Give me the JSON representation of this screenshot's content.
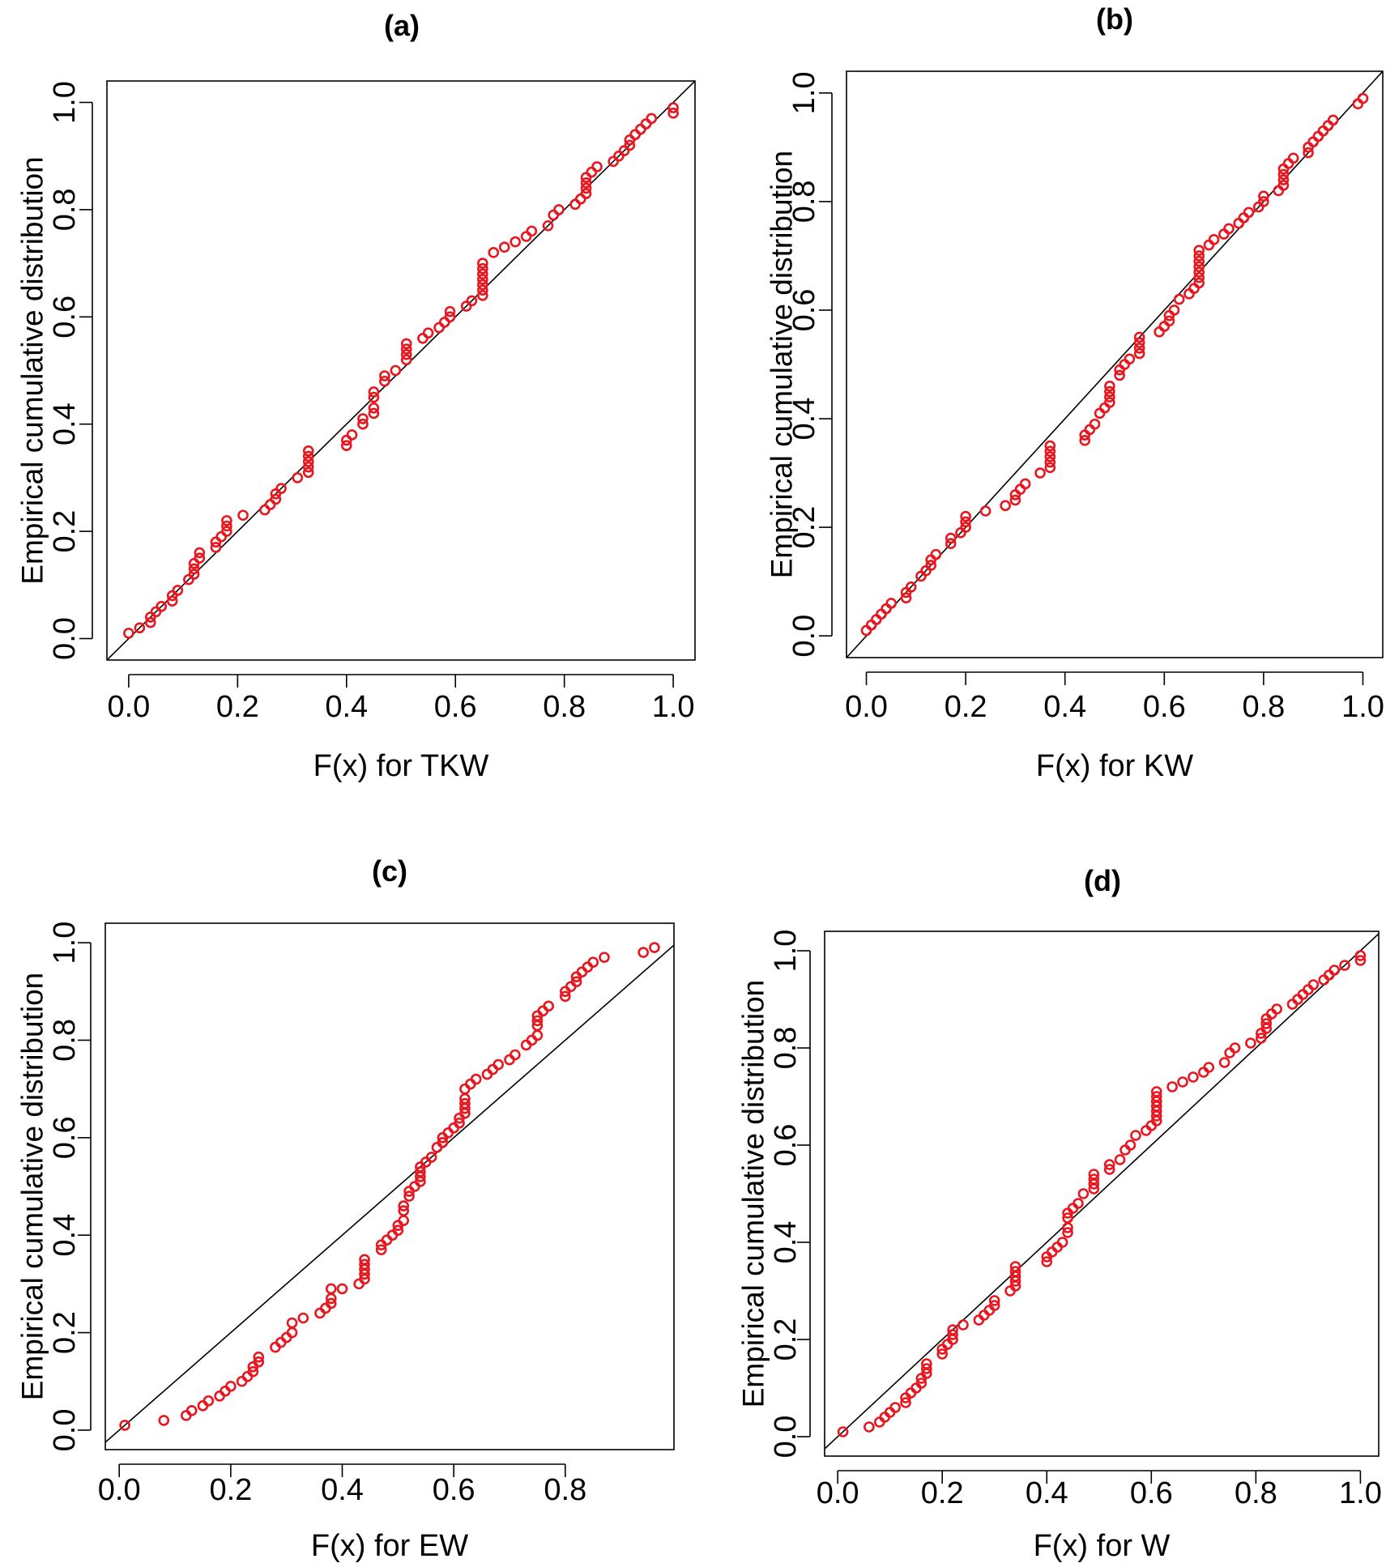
{
  "chart_data": [
    {
      "type": "scatter",
      "title": "(a)",
      "xlabel": "F(x) for TKW",
      "ylabel": "Empirical cumulative distribution",
      "xlim": [
        -0.04,
        1.04
      ],
      "ylim": [
        -0.04,
        1.04
      ],
      "xticks": [
        "0.0",
        "0.2",
        "0.4",
        "0.6",
        "0.8",
        "1.0"
      ],
      "yticks": [
        "0.0",
        "0.2",
        "0.4",
        "0.6",
        "0.8",
        "1.0"
      ],
      "grid": false,
      "marker_color": "#e8161f",
      "reference_line": [
        [
          0,
          0
        ],
        [
          1,
          1
        ]
      ],
      "x": [
        0.0,
        0.02,
        0.04,
        0.04,
        0.05,
        0.06,
        0.08,
        0.08,
        0.09,
        0.11,
        0.12,
        0.12,
        0.12,
        0.13,
        0.13,
        0.16,
        0.16,
        0.17,
        0.18,
        0.18,
        0.18,
        0.21,
        0.25,
        0.26,
        0.27,
        0.27,
        0.28,
        0.31,
        0.33,
        0.33,
        0.33,
        0.33,
        0.33,
        0.4,
        0.4,
        0.41,
        0.43,
        0.43,
        0.45,
        0.45,
        0.45,
        0.45,
        0.47,
        0.47,
        0.49,
        0.51,
        0.51,
        0.51,
        0.51,
        0.54,
        0.55,
        0.57,
        0.58,
        0.59,
        0.59,
        0.62,
        0.63,
        0.65,
        0.65,
        0.65,
        0.65,
        0.65,
        0.65,
        0.65,
        0.67,
        0.69,
        0.71,
        0.73,
        0.74,
        0.77,
        0.78,
        0.79,
        0.82,
        0.83,
        0.84,
        0.84,
        0.84,
        0.84,
        0.85,
        0.86,
        0.89,
        0.9,
        0.91,
        0.92,
        0.92,
        0.93,
        0.94,
        0.95,
        0.96,
        1.0,
        1.0
      ],
      "y": [
        0.01,
        0.02,
        0.03,
        0.04,
        0.05,
        0.06,
        0.07,
        0.08,
        0.09,
        0.11,
        0.12,
        0.13,
        0.14,
        0.15,
        0.16,
        0.17,
        0.18,
        0.19,
        0.2,
        0.21,
        0.22,
        0.23,
        0.24,
        0.25,
        0.26,
        0.27,
        0.28,
        0.3,
        0.31,
        0.32,
        0.33,
        0.34,
        0.35,
        0.36,
        0.37,
        0.38,
        0.4,
        0.41,
        0.42,
        0.43,
        0.45,
        0.46,
        0.48,
        0.49,
        0.5,
        0.52,
        0.53,
        0.54,
        0.55,
        0.56,
        0.57,
        0.58,
        0.59,
        0.6,
        0.61,
        0.62,
        0.63,
        0.64,
        0.65,
        0.66,
        0.67,
        0.68,
        0.69,
        0.7,
        0.72,
        0.73,
        0.74,
        0.75,
        0.76,
        0.77,
        0.79,
        0.8,
        0.81,
        0.82,
        0.83,
        0.84,
        0.85,
        0.86,
        0.87,
        0.88,
        0.89,
        0.9,
        0.91,
        0.92,
        0.93,
        0.94,
        0.95,
        0.96,
        0.97,
        0.98,
        0.99
      ]
    },
    {
      "type": "scatter",
      "title": "(b)",
      "xlabel": "F(x) for KW",
      "ylabel": "Empirical cumulative distribution",
      "xlim": [
        -0.04,
        1.04
      ],
      "ylim": [
        -0.04,
        1.04
      ],
      "xticks": [
        "0.0",
        "0.2",
        "0.4",
        "0.6",
        "0.8",
        "1.0"
      ],
      "yticks": [
        "0.0",
        "0.2",
        "0.4",
        "0.6",
        "0.8",
        "1.0"
      ],
      "grid": false,
      "marker_color": "#e8161f",
      "reference_line": [
        [
          0,
          0
        ],
        [
          1,
          1
        ]
      ],
      "x": [
        0.0,
        0.01,
        0.02,
        0.03,
        0.04,
        0.05,
        0.08,
        0.08,
        0.09,
        0.11,
        0.12,
        0.13,
        0.13,
        0.14,
        0.17,
        0.17,
        0.19,
        0.2,
        0.2,
        0.2,
        0.24,
        0.28,
        0.3,
        0.3,
        0.31,
        0.32,
        0.35,
        0.37,
        0.37,
        0.37,
        0.37,
        0.37,
        0.44,
        0.44,
        0.45,
        0.46,
        0.47,
        0.48,
        0.49,
        0.49,
        0.49,
        0.49,
        0.51,
        0.51,
        0.52,
        0.53,
        0.55,
        0.55,
        0.55,
        0.55,
        0.59,
        0.6,
        0.61,
        0.61,
        0.62,
        0.63,
        0.65,
        0.66,
        0.67,
        0.67,
        0.67,
        0.67,
        0.67,
        0.67,
        0.67,
        0.69,
        0.7,
        0.72,
        0.73,
        0.75,
        0.76,
        0.77,
        0.79,
        0.8,
        0.8,
        0.83,
        0.84,
        0.84,
        0.84,
        0.84,
        0.85,
        0.86,
        0.89,
        0.89,
        0.9,
        0.91,
        0.92,
        0.93,
        0.94,
        0.99,
        1.0
      ],
      "y": [
        0.01,
        0.02,
        0.03,
        0.04,
        0.05,
        0.06,
        0.07,
        0.08,
        0.09,
        0.11,
        0.12,
        0.13,
        0.14,
        0.15,
        0.17,
        0.18,
        0.19,
        0.2,
        0.21,
        0.22,
        0.23,
        0.24,
        0.25,
        0.26,
        0.27,
        0.28,
        0.3,
        0.31,
        0.32,
        0.33,
        0.34,
        0.35,
        0.36,
        0.37,
        0.38,
        0.39,
        0.41,
        0.42,
        0.43,
        0.44,
        0.45,
        0.46,
        0.48,
        0.49,
        0.5,
        0.51,
        0.52,
        0.53,
        0.54,
        0.55,
        0.56,
        0.57,
        0.58,
        0.59,
        0.6,
        0.62,
        0.63,
        0.64,
        0.65,
        0.66,
        0.67,
        0.68,
        0.69,
        0.7,
        0.71,
        0.72,
        0.73,
        0.74,
        0.75,
        0.76,
        0.77,
        0.78,
        0.79,
        0.8,
        0.81,
        0.82,
        0.83,
        0.84,
        0.85,
        0.86,
        0.87,
        0.88,
        0.89,
        0.9,
        0.91,
        0.92,
        0.93,
        0.94,
        0.95,
        0.98,
        0.99
      ]
    },
    {
      "type": "scatter",
      "title": "(c)",
      "xlabel": "F(x) for EW",
      "ylabel": "Empirical cumulative distribution",
      "xlim": [
        -0.025,
        0.995
      ],
      "ylim": [
        -0.04,
        1.04
      ],
      "xticks": [
        "0.0",
        "0.2",
        "0.4",
        "0.6",
        "0.8"
      ],
      "yticks": [
        "0.0",
        "0.2",
        "0.4",
        "0.6",
        "0.8",
        "1.0"
      ],
      "grid": false,
      "marker_color": "#e8161f",
      "reference_line": [
        [
          0,
          0
        ],
        [
          1,
          1
        ]
      ],
      "x": [
        0.01,
        0.08,
        0.12,
        0.13,
        0.15,
        0.16,
        0.18,
        0.19,
        0.2,
        0.22,
        0.23,
        0.24,
        0.24,
        0.25,
        0.25,
        0.28,
        0.29,
        0.3,
        0.31,
        0.31,
        0.33,
        0.36,
        0.37,
        0.38,
        0.38,
        0.38,
        0.4,
        0.43,
        0.44,
        0.44,
        0.44,
        0.44,
        0.44,
        0.47,
        0.47,
        0.48,
        0.49,
        0.5,
        0.5,
        0.51,
        0.51,
        0.51,
        0.52,
        0.52,
        0.53,
        0.54,
        0.54,
        0.54,
        0.54,
        0.55,
        0.56,
        0.57,
        0.58,
        0.58,
        0.59,
        0.6,
        0.61,
        0.61,
        0.62,
        0.62,
        0.62,
        0.62,
        0.62,
        0.63,
        0.64,
        0.66,
        0.67,
        0.68,
        0.7,
        0.71,
        0.73,
        0.74,
        0.75,
        0.75,
        0.75,
        0.75,
        0.76,
        0.77,
        0.8,
        0.8,
        0.81,
        0.82,
        0.82,
        0.83,
        0.84,
        0.85,
        0.87,
        0.94,
        0.96
      ],
      "y": [
        0.01,
        0.02,
        0.03,
        0.04,
        0.05,
        0.06,
        0.07,
        0.08,
        0.09,
        0.1,
        0.11,
        0.12,
        0.13,
        0.14,
        0.15,
        0.17,
        0.18,
        0.19,
        0.2,
        0.22,
        0.23,
        0.24,
        0.25,
        0.26,
        0.27,
        0.29,
        0.29,
        0.3,
        0.31,
        0.32,
        0.33,
        0.34,
        0.35,
        0.37,
        0.38,
        0.39,
        0.4,
        0.41,
        0.42,
        0.43,
        0.45,
        0.46,
        0.48,
        0.49,
        0.5,
        0.51,
        0.52,
        0.53,
        0.54,
        0.55,
        0.56,
        0.58,
        0.59,
        0.6,
        0.61,
        0.62,
        0.63,
        0.64,
        0.65,
        0.66,
        0.67,
        0.68,
        0.7,
        0.71,
        0.72,
        0.73,
        0.74,
        0.75,
        0.76,
        0.77,
        0.79,
        0.8,
        0.81,
        0.83,
        0.84,
        0.85,
        0.86,
        0.87,
        0.89,
        0.9,
        0.91,
        0.92,
        0.93,
        0.94,
        0.95,
        0.96,
        0.97,
        0.98,
        0.99
      ]
    },
    {
      "type": "scatter",
      "title": "(d)",
      "xlabel": "F(x) for W",
      "ylabel": "Empirical cumulative distribution",
      "xlim": [
        -0.025,
        1.035
      ],
      "ylim": [
        -0.04,
        1.04
      ],
      "xticks": [
        "0.0",
        "0.2",
        "0.4",
        "0.6",
        "0.8",
        "1.0"
      ],
      "yticks": [
        "0.0",
        "0.2",
        "0.4",
        "0.6",
        "0.8",
        "1.0"
      ],
      "grid": false,
      "marker_color": "#e8161f",
      "reference_line": [
        [
          0,
          0
        ],
        [
          1,
          1
        ]
      ],
      "x": [
        0.01,
        0.06,
        0.08,
        0.09,
        0.1,
        0.11,
        0.13,
        0.13,
        0.14,
        0.15,
        0.16,
        0.16,
        0.17,
        0.17,
        0.17,
        0.2,
        0.2,
        0.21,
        0.22,
        0.22,
        0.22,
        0.24,
        0.27,
        0.28,
        0.29,
        0.3,
        0.3,
        0.33,
        0.34,
        0.34,
        0.34,
        0.34,
        0.34,
        0.4,
        0.4,
        0.41,
        0.42,
        0.43,
        0.44,
        0.44,
        0.44,
        0.44,
        0.45,
        0.46,
        0.47,
        0.49,
        0.49,
        0.49,
        0.49,
        0.52,
        0.52,
        0.54,
        0.55,
        0.56,
        0.57,
        0.59,
        0.6,
        0.61,
        0.61,
        0.61,
        0.61,
        0.61,
        0.61,
        0.61,
        0.64,
        0.66,
        0.68,
        0.7,
        0.71,
        0.74,
        0.75,
        0.76,
        0.79,
        0.81,
        0.81,
        0.82,
        0.82,
        0.82,
        0.83,
        0.84,
        0.87,
        0.88,
        0.89,
        0.9,
        0.91,
        0.93,
        0.94,
        0.95,
        0.97,
        1.0,
        1.0
      ],
      "y": [
        0.01,
        0.02,
        0.03,
        0.04,
        0.05,
        0.06,
        0.07,
        0.08,
        0.09,
        0.1,
        0.11,
        0.12,
        0.13,
        0.14,
        0.15,
        0.17,
        0.18,
        0.19,
        0.2,
        0.21,
        0.22,
        0.23,
        0.24,
        0.25,
        0.26,
        0.27,
        0.28,
        0.3,
        0.31,
        0.32,
        0.33,
        0.34,
        0.35,
        0.36,
        0.37,
        0.38,
        0.39,
        0.4,
        0.42,
        0.43,
        0.45,
        0.46,
        0.47,
        0.48,
        0.5,
        0.51,
        0.52,
        0.53,
        0.54,
        0.55,
        0.56,
        0.57,
        0.59,
        0.6,
        0.62,
        0.63,
        0.64,
        0.65,
        0.66,
        0.67,
        0.68,
        0.69,
        0.7,
        0.71,
        0.72,
        0.73,
        0.74,
        0.75,
        0.76,
        0.77,
        0.79,
        0.8,
        0.81,
        0.82,
        0.83,
        0.84,
        0.85,
        0.86,
        0.87,
        0.88,
        0.89,
        0.9,
        0.91,
        0.92,
        0.93,
        0.94,
        0.95,
        0.96,
        0.97,
        0.98,
        0.99
      ]
    }
  ]
}
